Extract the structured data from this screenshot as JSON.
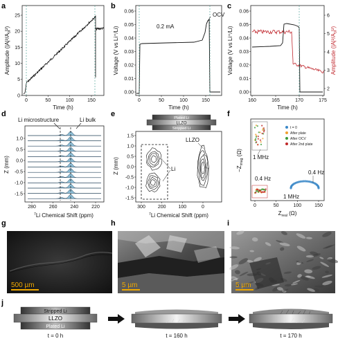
{
  "panels": {
    "a": {
      "label": "a",
      "xlabel": "Time (h)",
      "ylabel": "Amplitude (|A|²/A",
      "ylabel_sub": "0",
      "ylabel_end": "|²)",
      "xticks": [
        "0",
        "50",
        "100",
        "150"
      ],
      "yticks": [
        "0",
        "5",
        "10",
        "15",
        "20",
        "25"
      ]
    },
    "b": {
      "label": "b",
      "xlabel": "Time (h)",
      "ylabel": "Voltage (V vs Li⁺/Li)",
      "xticks": [
        "0",
        "50",
        "100",
        "150"
      ],
      "yticks": [
        "0.00",
        "0.01",
        "0.02",
        "0.03",
        "0.04",
        "0.05",
        "0.06"
      ],
      "current_label": "0.2 mA",
      "ocv_label": "OCV"
    },
    "c": {
      "label": "c",
      "xlabel": "Time (h)",
      "ylabel_left": "Voltage (V vs Li⁺/Li)",
      "ylabel_right": "Amplitude (|A|²/A",
      "ylabel_right_sub": "0",
      "ylabel_right_end": "|²)",
      "xticks": [
        "160",
        "165",
        "170",
        "175"
      ],
      "yticks_left": [
        "0.00",
        "0.01",
        "0.02",
        "0.03",
        "0.04",
        "0.05",
        "0.06"
      ],
      "yticks_right": [
        "2",
        "3",
        "4",
        "5",
        "6"
      ],
      "right_color": "#c0272d"
    },
    "d": {
      "label": "d",
      "xlabel": "Li Chemical Shift (ppm)",
      "xlabel_sup": "7",
      "ylabel": "Z (mm)",
      "xticks": [
        "280",
        "260",
        "240",
        "220"
      ],
      "yticks": [
        "1.0",
        "0.5",
        "0.0",
        "-0.5",
        "-1.0",
        "-1.5"
      ],
      "annot_micro": "Li microstructure",
      "annot_bulk": "Li bulk",
      "fill_color": "#6aa9c9"
    },
    "e": {
      "label": "e",
      "xlabel": "Li Chemical Shift (ppm)",
      "xlabel_sup": "7",
      "ylabel": "Z (mm)",
      "xticks": [
        "300",
        "200",
        "100",
        "0"
      ],
      "yticks": [
        "1.5",
        "1.0",
        "0.5",
        "0.0",
        "-0.5",
        "-1.0",
        "-1.5"
      ],
      "stack": [
        "Plated Li",
        "LLZO",
        "Stripped Li"
      ],
      "label_li": "Li",
      "label_llzo": "LLZO"
    },
    "f": {
      "label": "f",
      "xlabel": "Z",
      "xlabel_sub": "real",
      "xlabel_end": " (Ω)",
      "ylabel": "−Z",
      "ylabel_sub": "imag",
      "ylabel_end": " (Ω)",
      "xticks": [
        "0",
        "50",
        "100",
        "150"
      ],
      "legend": [
        {
          "name": "t = 0",
          "color": "#3b88c8"
        },
        {
          "name": "After plate",
          "color": "#f0a030"
        },
        {
          "name": "After OCV",
          "color": "#3a9a3a"
        },
        {
          "name": "After 2nd plate",
          "color": "#c02828"
        }
      ],
      "annot_1mhz_top": "1 MHz",
      "annot_04hz_mid": "0.4 Hz",
      "annot_04hz_right": "0.4 Hz",
      "annot_1mhz_bottom": "1 MHz"
    },
    "g": {
      "label": "g",
      "scale": "500 µm"
    },
    "h": {
      "label": "h",
      "scale": "5 µm"
    },
    "i": {
      "label": "i",
      "scale": "5 µm"
    },
    "j": {
      "label": "j",
      "stripped": "Stripped Li",
      "llzo": "LLZO",
      "plated": "Plated Li",
      "t0": "t = 0 h",
      "t160": "t = 160 h",
      "t170": "t = 170 h"
    }
  },
  "colors": {
    "scale_bar": "#f0a800",
    "scale_text": "#f0a800",
    "guide_line": "#3a9a8a",
    "series_black": "#111111",
    "series_red": "#c0272d"
  }
}
